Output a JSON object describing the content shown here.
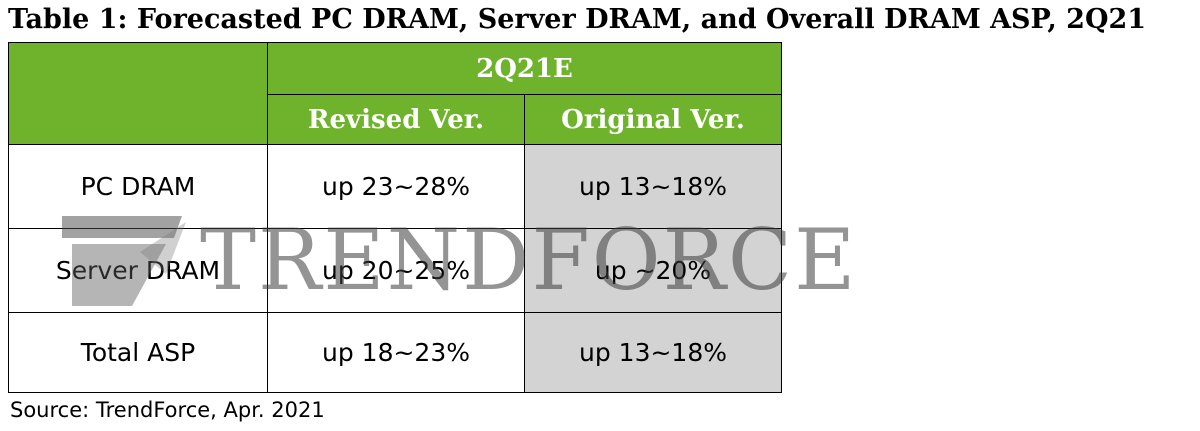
{
  "title": "Table 1: Forecasted PC DRAM, Server DRAM, and Overall DRAM ASP, 2Q21",
  "table": {
    "period_header": "2Q21E",
    "column_headers": [
      "Revised Ver.",
      "Original Ver."
    ],
    "rows": [
      {
        "label": "PC DRAM",
        "revised": "up 23~28%",
        "original": "up 13~18%"
      },
      {
        "label": "Server DRAM",
        "revised": "up 20~25%",
        "original": "up ~20%"
      },
      {
        "label": "Total ASP",
        "revised": "up 18~23%",
        "original": "up 13~18%"
      }
    ]
  },
  "watermark": {
    "text": "TRENDFORCE"
  },
  "source": "Source: TrendForce, Apr. 2021",
  "colors": {
    "header_green": "#6eb32b",
    "original_col_grey": "#d3d3d3",
    "watermark_grey": "#3c3c3c"
  }
}
